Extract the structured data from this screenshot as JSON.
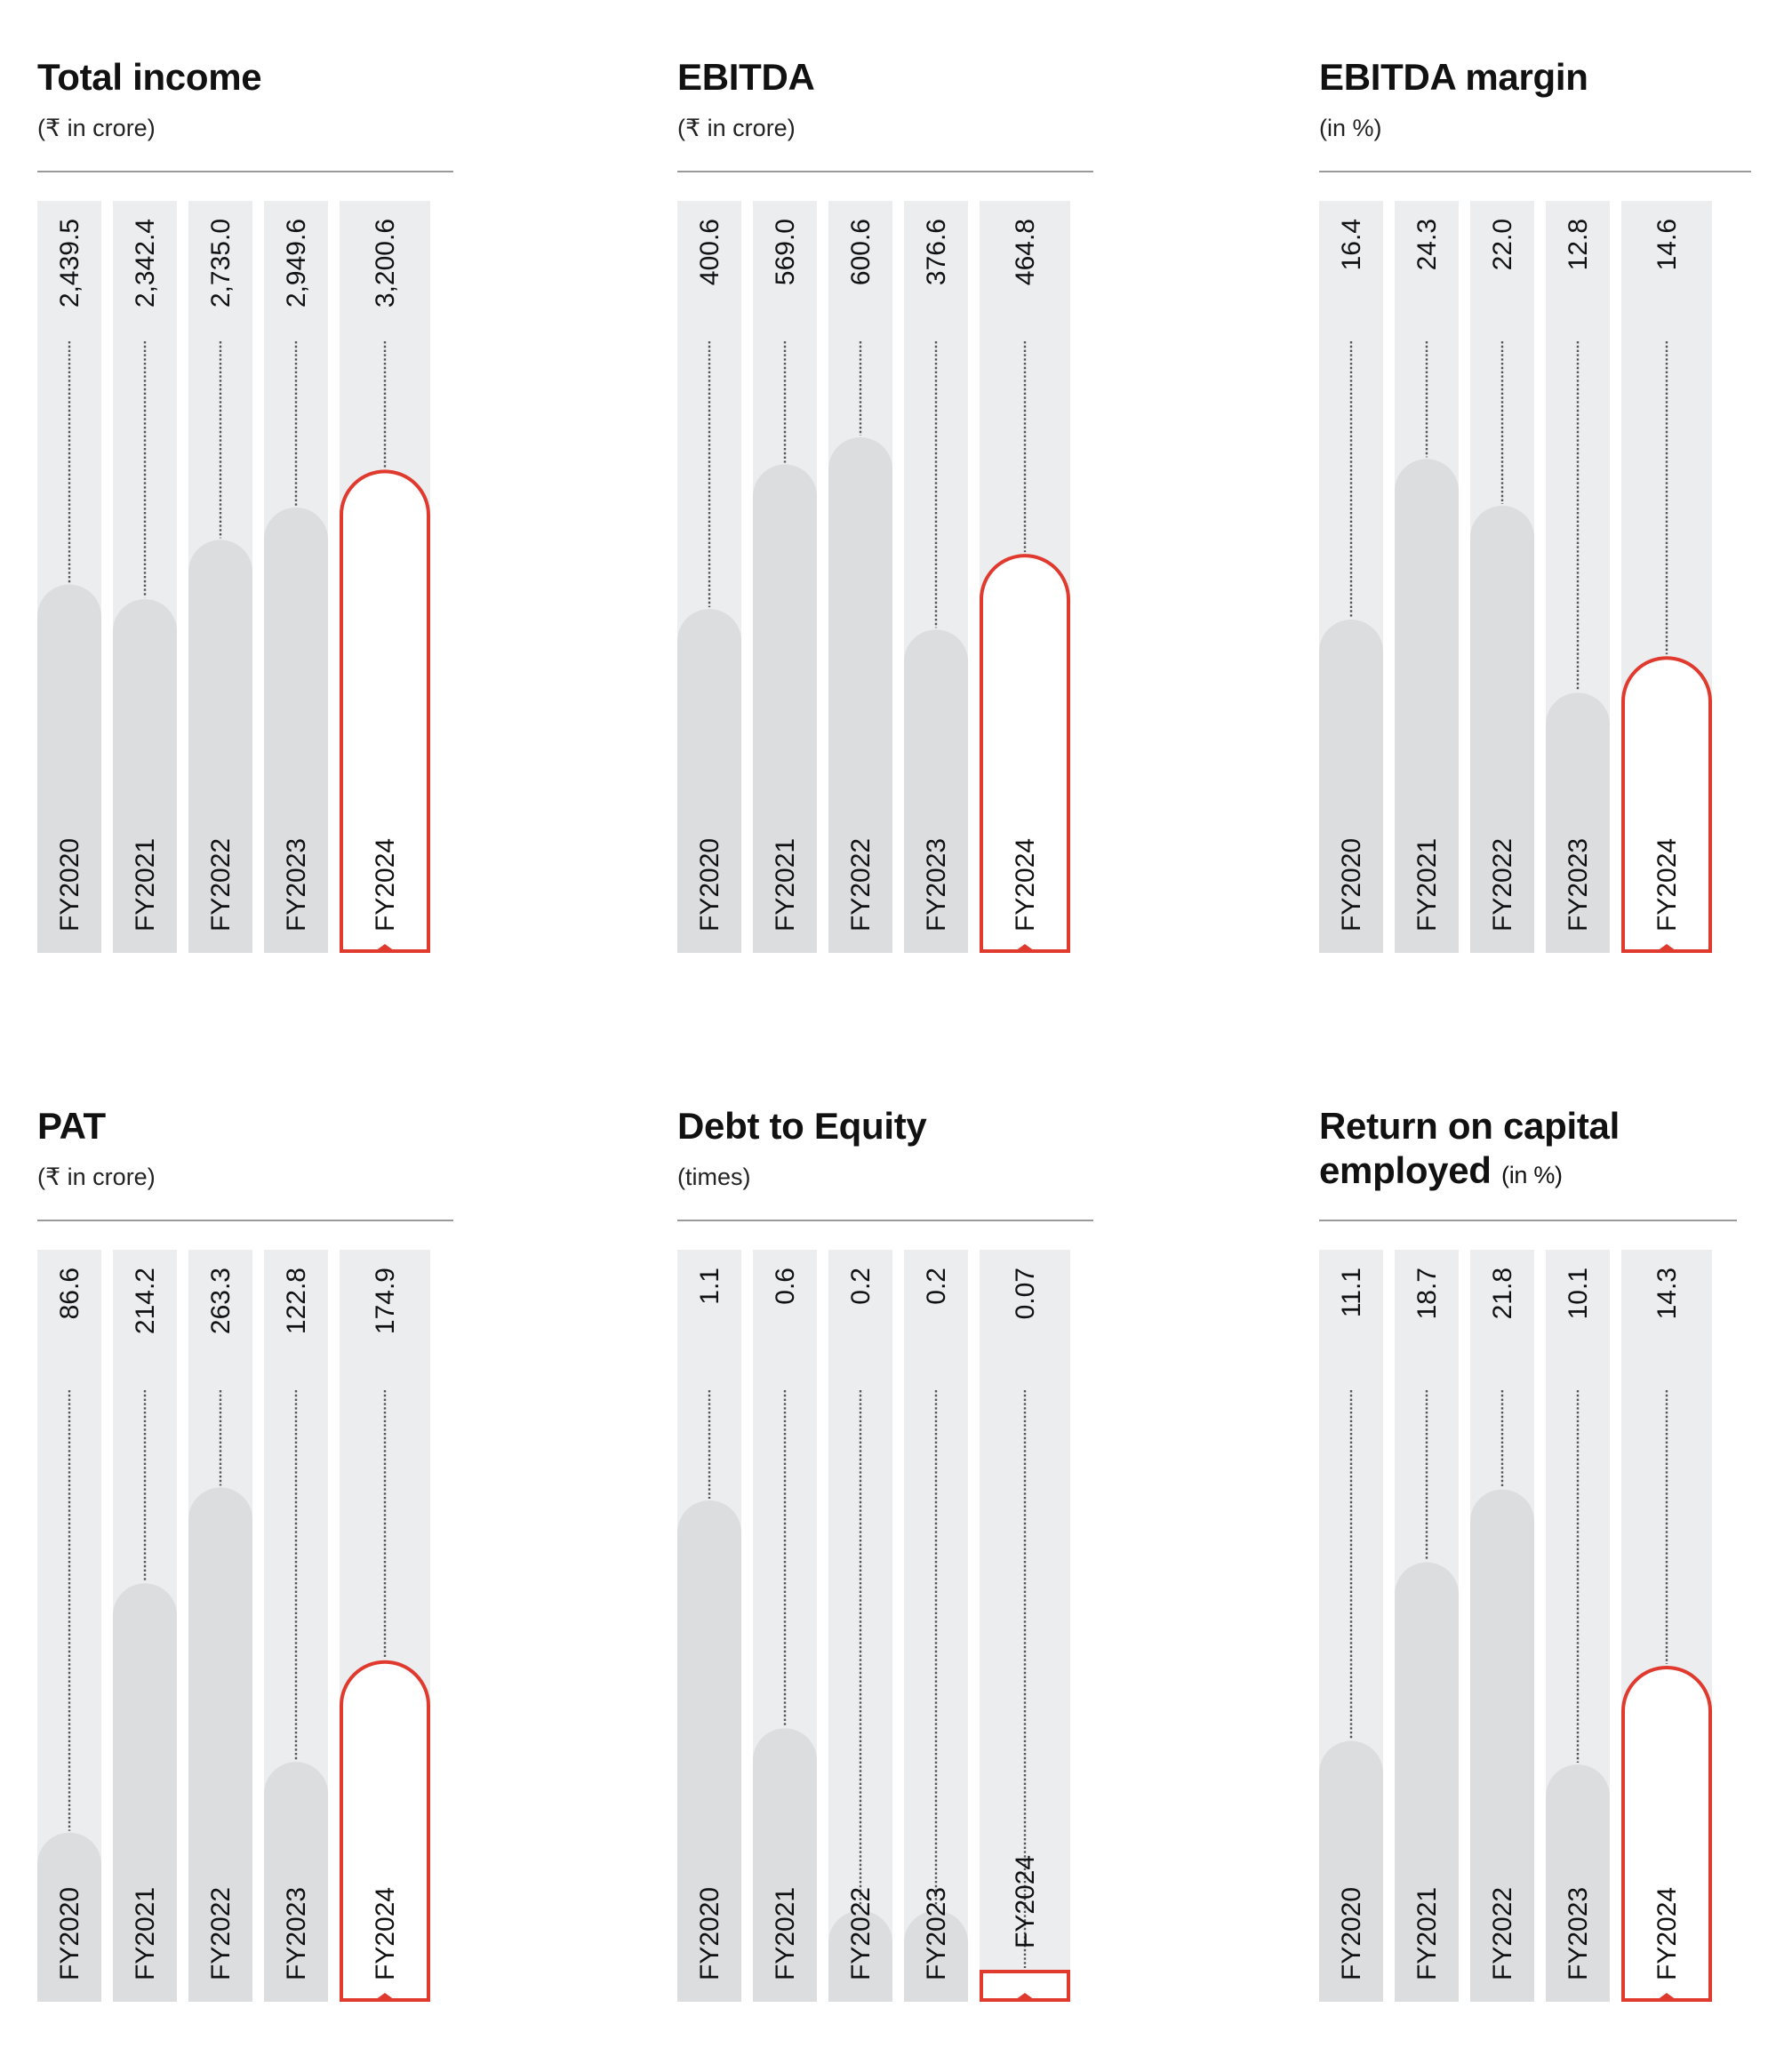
{
  "colors": {
    "track": "#ecedef",
    "bar": "#dcdddf",
    "highlight": "#e03a2f",
    "text": "#111111",
    "leader": "#555555"
  },
  "chart_data": [
    {
      "type": "bar",
      "title": "Total income",
      "unit": "(₹ in crore)",
      "categories": [
        "FY2020",
        "FY2021",
        "FY2022",
        "FY2023",
        "FY2024"
      ],
      "values": [
        2439.5,
        2342.4,
        2735.0,
        2949.6,
        3200.6
      ],
      "value_labels": [
        "2,439.5",
        "2,342.4",
        "2,735.0",
        "2,949.6",
        "3,200.6"
      ],
      "highlight": "FY2024",
      "ylim": [
        0,
        4980
      ]
    },
    {
      "type": "bar",
      "title": "EBITDA",
      "unit": "(₹ in crore)",
      "categories": [
        "FY2020",
        "FY2021",
        "FY2022",
        "FY2023",
        "FY2024"
      ],
      "values": [
        400.6,
        569.0,
        600.6,
        376.6,
        464.8
      ],
      "value_labels": [
        "400.6",
        "569.0",
        "600.6",
        "376.6",
        "464.8"
      ],
      "highlight": "FY2024",
      "ylim": [
        0,
        876
      ]
    },
    {
      "type": "bar",
      "title": "EBITDA margin",
      "unit": "(in %)",
      "categories": [
        "FY2020",
        "FY2021",
        "FY2022",
        "FY2023",
        "FY2024"
      ],
      "values": [
        16.4,
        24.3,
        22.0,
        12.8,
        14.6
      ],
      "value_labels": [
        "16.4",
        "24.3",
        "22.0",
        "12.8",
        "14.6"
      ],
      "highlight": "FY2024",
      "ylim": [
        0,
        37
      ]
    },
    {
      "type": "bar",
      "title": "PAT",
      "unit": "(₹ in crore)",
      "categories": [
        "FY2020",
        "FY2021",
        "FY2022",
        "FY2023",
        "FY2024"
      ],
      "values": [
        86.6,
        214.2,
        263.3,
        122.8,
        174.9
      ],
      "value_labels": [
        "86.6",
        "214.2",
        "263.3",
        "122.8",
        "174.9"
      ],
      "highlight": "FY2024",
      "ylim": [
        0,
        385
      ]
    },
    {
      "type": "bar",
      "title": "Debt to Equity",
      "unit": "(times)",
      "categories": [
        "FY2020",
        "FY2021",
        "FY2022",
        "FY2023",
        "FY2024"
      ],
      "values": [
        1.1,
        0.6,
        0.2,
        0.2,
        0.07
      ],
      "value_labels": [
        "1.1",
        "0.6",
        "0.2",
        "0.2",
        "0.07"
      ],
      "highlight": "FY2024",
      "ylim": [
        0,
        1.65
      ]
    },
    {
      "type": "bar",
      "title": "Return on capital employed",
      "title_lines": [
        "Return on capital",
        "employed"
      ],
      "unit": "(in %)",
      "categories": [
        "FY2020",
        "FY2021",
        "FY2022",
        "FY2023",
        "FY2024"
      ],
      "values": [
        11.1,
        18.7,
        21.8,
        10.1,
        14.3
      ],
      "value_labels": [
        "11.1",
        "18.7",
        "21.8",
        "10.1",
        "14.3"
      ],
      "highlight": "FY2024",
      "ylim": [
        0,
        32
      ]
    }
  ]
}
